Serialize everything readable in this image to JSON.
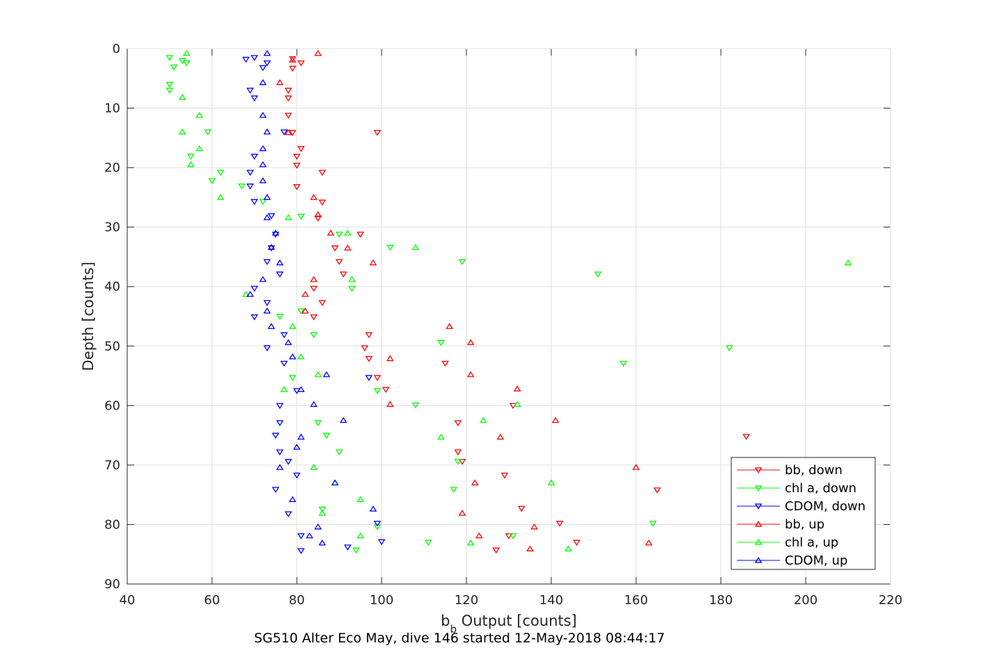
{
  "chart_data": {
    "type": "scatter",
    "title": "",
    "caption": "SG510 Alter Eco May, dive 146 started 12-May-2018 08:44:17",
    "xlabel_main": "b",
    "xlabel_sub": "b",
    "xlabel_rest": " Output [counts]",
    "ylabel": "Depth [counts]",
    "xlim": [
      40,
      220
    ],
    "ylim": [
      0,
      90
    ],
    "y_reversed": true,
    "grid": true,
    "legend_position": "lower-right",
    "xticks": [
      "40",
      "60",
      "80",
      "100",
      "120",
      "140",
      "160",
      "180",
      "200",
      "220"
    ],
    "yticks": [
      "0",
      "10",
      "20",
      "30",
      "40",
      "50",
      "60",
      "70",
      "80",
      "90"
    ],
    "series": [
      {
        "name": "bb, down",
        "marker": "triangle-down",
        "color": "#ff0000",
        "points": [
          [
            79,
            1.7
          ],
          [
            79,
            3.3
          ],
          [
            81,
            2.4
          ],
          [
            78,
            7
          ],
          [
            78,
            8.3
          ],
          [
            78,
            11.2
          ],
          [
            79,
            14.1
          ],
          [
            99,
            14.1
          ],
          [
            81,
            16.8
          ],
          [
            80,
            18.1
          ],
          [
            80,
            19.6
          ],
          [
            86,
            20.8
          ],
          [
            80,
            23.2
          ],
          [
            86,
            25.8
          ],
          [
            85,
            28.5
          ],
          [
            95,
            31.2
          ],
          [
            89,
            33.5
          ],
          [
            90,
            35.8
          ],
          [
            91,
            37.9
          ],
          [
            84,
            40.3
          ],
          [
            86,
            42.7
          ],
          [
            84,
            45.1
          ],
          [
            97,
            48.1
          ],
          [
            96,
            50.3
          ],
          [
            97,
            52.1
          ],
          [
            115,
            52.9
          ],
          [
            99,
            55.3
          ],
          [
            101,
            57.3
          ],
          [
            131,
            60.0
          ],
          [
            118,
            62.9
          ],
          [
            118,
            67.8
          ],
          [
            119,
            69.4
          ],
          [
            129,
            71.7
          ],
          [
            165,
            74.2
          ],
          [
            133,
            77.3
          ],
          [
            142,
            79.8
          ],
          [
            130,
            81.9
          ],
          [
            146,
            83.0
          ],
          [
            127,
            84.3
          ],
          [
            186,
            65.2
          ]
        ]
      },
      {
        "name": "chl a, down",
        "color": "#00ff00",
        "marker": "triangle-down",
        "points": [
          [
            50,
            1.5
          ],
          [
            53,
            2.0
          ],
          [
            54,
            2.4
          ],
          [
            51,
            3.1
          ],
          [
            50,
            6.0
          ],
          [
            50,
            7.0
          ],
          [
            59,
            14.0
          ],
          [
            55,
            18.1
          ],
          [
            62,
            20.8
          ],
          [
            60,
            22.2
          ],
          [
            67,
            23.1
          ],
          [
            72,
            25.7
          ],
          [
            81,
            28.2
          ],
          [
            90,
            31.2
          ],
          [
            102,
            33.4
          ],
          [
            119,
            35.8
          ],
          [
            151,
            37.9
          ],
          [
            93,
            40.3
          ],
          [
            81,
            44.1
          ],
          [
            76,
            45.0
          ],
          [
            84,
            48.1
          ],
          [
            114,
            49.4
          ],
          [
            182,
            50.3
          ],
          [
            157,
            52.9
          ],
          [
            79,
            55.3
          ],
          [
            99,
            57.5
          ],
          [
            108,
            59.9
          ],
          [
            85,
            62.9
          ],
          [
            87,
            65.0
          ],
          [
            90,
            67.8
          ],
          [
            118,
            69.4
          ],
          [
            117,
            74.1
          ],
          [
            86,
            77.4
          ],
          [
            164,
            79.8
          ],
          [
            99,
            80.4
          ],
          [
            131,
            81.9
          ],
          [
            111,
            83.0
          ],
          [
            94,
            84.3
          ]
        ]
      },
      {
        "name": "CDOM, down",
        "color": "#0000ff",
        "marker": "triangle-down",
        "points": [
          [
            68,
            1.8
          ],
          [
            70,
            1.5
          ],
          [
            73,
            2.4
          ],
          [
            72,
            3.2
          ],
          [
            69,
            7.0
          ],
          [
            70,
            8.3
          ],
          [
            77,
            14.0
          ],
          [
            70,
            18.1
          ],
          [
            69,
            20.8
          ],
          [
            69,
            23.1
          ],
          [
            70,
            25.7
          ],
          [
            74,
            28.1
          ],
          [
            75,
            31.2
          ],
          [
            74,
            33.5
          ],
          [
            73,
            35.8
          ],
          [
            76,
            37.9
          ],
          [
            70,
            40.3
          ],
          [
            73,
            42.7
          ],
          [
            70,
            45.1
          ],
          [
            77,
            48.1
          ],
          [
            73,
            50.3
          ],
          [
            77,
            52.9
          ],
          [
            97,
            55.3
          ],
          [
            80,
            57.5
          ],
          [
            76,
            60.0
          ],
          [
            76,
            62.9
          ],
          [
            75,
            65.0
          ],
          [
            76,
            67.8
          ],
          [
            78,
            69.4
          ],
          [
            80,
            71.7
          ],
          [
            75,
            74.1
          ],
          [
            78,
            78.2
          ],
          [
            99,
            79.8
          ],
          [
            81,
            81.9
          ],
          [
            100,
            82.9
          ],
          [
            92,
            83.8
          ],
          [
            81,
            84.4
          ]
        ]
      },
      {
        "name": "bb, up",
        "color": "#ff0000",
        "marker": "triangle-up",
        "points": [
          [
            85,
            0.8
          ],
          [
            79,
            1.9
          ],
          [
            76,
            5.7
          ],
          [
            78,
            14.1
          ],
          [
            84,
            25.0
          ],
          [
            85,
            27.9
          ],
          [
            88,
            31.0
          ],
          [
            92,
            33.5
          ],
          [
            98,
            36.0
          ],
          [
            84,
            38.8
          ],
          [
            82,
            41.3
          ],
          [
            82,
            44.1
          ],
          [
            116,
            46.7
          ],
          [
            121,
            49.4
          ],
          [
            102,
            52.1
          ],
          [
            121,
            54.8
          ],
          [
            132,
            57.2
          ],
          [
            102,
            59.8
          ],
          [
            141,
            62.5
          ],
          [
            128,
            65.3
          ],
          [
            122,
            73.0
          ],
          [
            160,
            70.4
          ],
          [
            136,
            80.4
          ],
          [
            119,
            78.1
          ],
          [
            123,
            81.9
          ],
          [
            135,
            84.1
          ],
          [
            163,
            83.1
          ]
        ]
      },
      {
        "name": "chl a, up",
        "color": "#00ff00",
        "marker": "triangle-up",
        "points": [
          [
            54,
            0.8
          ],
          [
            53,
            8.2
          ],
          [
            57,
            11.2
          ],
          [
            53,
            14.0
          ],
          [
            57,
            16.8
          ],
          [
            55,
            19.5
          ],
          [
            62,
            25.0
          ],
          [
            78,
            28.4
          ],
          [
            92,
            31.0
          ],
          [
            108,
            33.4
          ],
          [
            210,
            36.0
          ],
          [
            93,
            38.8
          ],
          [
            68,
            41.3
          ],
          [
            79,
            46.7
          ],
          [
            81,
            51.8
          ],
          [
            85,
            54.8
          ],
          [
            77,
            57.3
          ],
          [
            132,
            59.8
          ],
          [
            124,
            62.5
          ],
          [
            114,
            65.3
          ],
          [
            84,
            70.4
          ],
          [
            89,
            73.0
          ],
          [
            140,
            73.0
          ],
          [
            95,
            75.8
          ],
          [
            86,
            78.1
          ],
          [
            95,
            81.9
          ],
          [
            121,
            83.1
          ],
          [
            144,
            84.1
          ]
        ]
      },
      {
        "name": "CDOM, up",
        "color": "#0000ff",
        "marker": "triangle-up",
        "points": [
          [
            73,
            0.8
          ],
          [
            72,
            5.7
          ],
          [
            72,
            11.2
          ],
          [
            73,
            14.0
          ],
          [
            72,
            16.8
          ],
          [
            72,
            19.5
          ],
          [
            72,
            22.2
          ],
          [
            73,
            25.0
          ],
          [
            73,
            28.4
          ],
          [
            75,
            31.0
          ],
          [
            74,
            33.4
          ],
          [
            76,
            36.0
          ],
          [
            72,
            38.8
          ],
          [
            69,
            41.3
          ],
          [
            73,
            44.1
          ],
          [
            74,
            46.7
          ],
          [
            78,
            49.4
          ],
          [
            79,
            51.8
          ],
          [
            87,
            54.8
          ],
          [
            81,
            57.3
          ],
          [
            84,
            59.8
          ],
          [
            91,
            62.5
          ],
          [
            81,
            65.3
          ],
          [
            80,
            67.0
          ],
          [
            76,
            70.4
          ],
          [
            89,
            73.0
          ],
          [
            79,
            75.8
          ],
          [
            98,
            77.4
          ],
          [
            85,
            80.4
          ],
          [
            83,
            81.9
          ],
          [
            86,
            83.1
          ]
        ]
      }
    ]
  }
}
